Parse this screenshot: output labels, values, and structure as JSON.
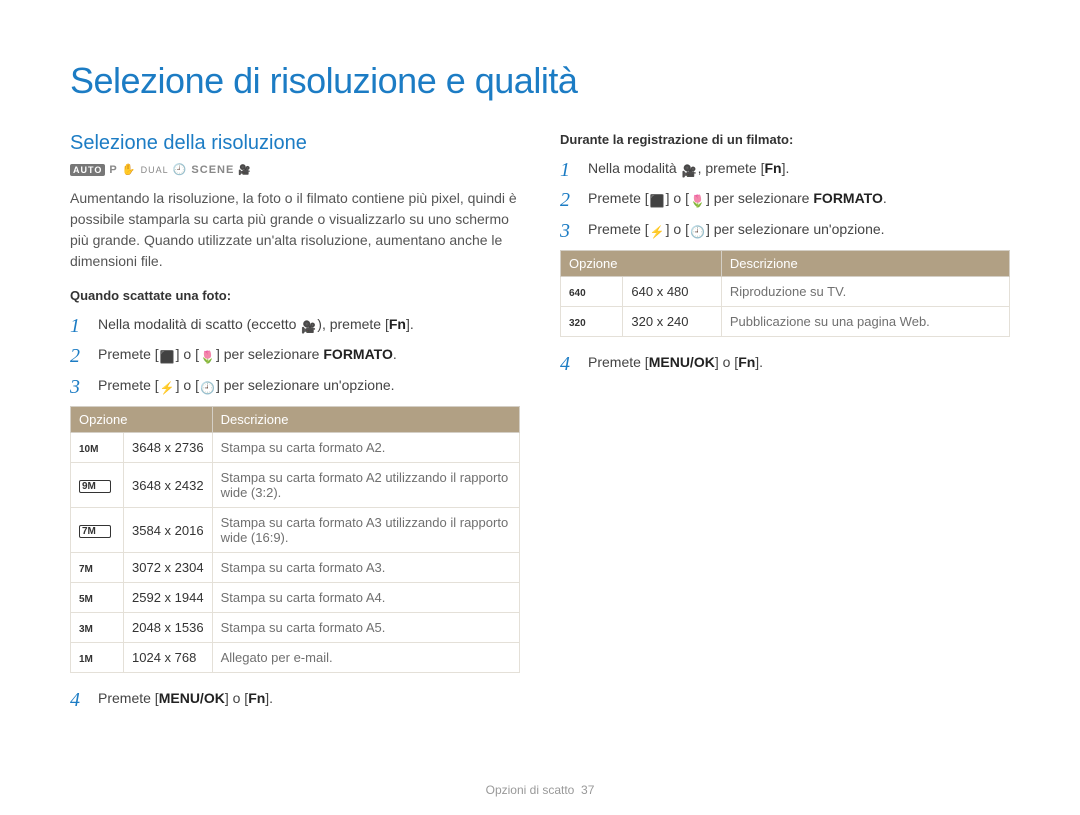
{
  "title": "Selezione di risoluzione e qualità",
  "footer": {
    "chapter": "Opzioni di scatto",
    "page": "37"
  },
  "left": {
    "subtitle": "Selezione della risoluzione",
    "modeicons_html": "<span class='auto'>AUTO</span> <span class='p'>P</span> <span>✋</span> <span style='font-size:9px;'>DUAL</span> <span>🕘</span> <span class='scene'>SCENE</span> <span class='cam'></span>",
    "para": "Aumentando la risoluzione, la foto o il filmato contiene più pixel, quindi è possibile stamparla su carta più grande o visualizzarlo su uno schermo più grande. Quando utilizzate un'alta risoluzione, aumentano anche le dimensioni file.",
    "mini_heading": "Quando scattate una foto:",
    "steps": [
      {
        "html": "Nella modalità di scatto (eccetto <span class='ico'>🎥</span>), premete [<b>Fn</b>]."
      },
      {
        "html": "Premete [<span class='ico'>⬛</span>] o [<span class='ico'>🌷</span>] per selezionare <b>FORMATO</b>."
      },
      {
        "html": "Premete [<span class='ico'>⚡</span>] o [<span class='ico'>🕘</span>] per selezionare un'opzione."
      }
    ],
    "table": {
      "headers": [
        "Opzione",
        "Descrizione"
      ],
      "rows": [
        {
          "badge_text": "10M",
          "badge_box": false,
          "val": "3648 x 2736",
          "desc": "Stampa su carta formato A2."
        },
        {
          "badge_text": "9M",
          "badge_box": true,
          "val": "3648 x 2432",
          "desc": "Stampa su carta formato A2 utilizzando il rapporto wide (3:2)."
        },
        {
          "badge_text": "7M",
          "badge_box": true,
          "val": "3584 x 2016",
          "desc": "Stampa su carta formato A3 utilizzando il rapporto wide (16:9)."
        },
        {
          "badge_text": "7M",
          "badge_box": false,
          "val": "3072 x 2304",
          "desc": "Stampa su carta formato A3."
        },
        {
          "badge_text": "5M",
          "badge_box": false,
          "val": "2592 x 1944",
          "desc": "Stampa su carta formato A4."
        },
        {
          "badge_text": "3M",
          "badge_box": false,
          "val": "2048 x 1536",
          "desc": "Stampa su carta formato A5."
        },
        {
          "badge_text": "1M",
          "badge_box": false,
          "val": "1024 x 768",
          "desc": "Allegato per e-mail."
        }
      ]
    },
    "step4_html": "Premete [<b>MENU/OK</b>] o [<b>Fn</b>]."
  },
  "right": {
    "mini_heading": "Durante la registrazione di un filmato:",
    "steps": [
      {
        "html": "Nella modalità <span class='ico'>🎥</span>, premete [<b>Fn</b>]."
      },
      {
        "html": "Premete [<span class='ico'>⬛</span>] o [<span class='ico'>🌷</span>] per selezionare <b>FORMATO</b>."
      },
      {
        "html": "Premete [<span class='ico'>⚡</span>] o [<span class='ico'>🕘</span>] per selezionare un'opzione."
      }
    ],
    "table": {
      "headers": [
        "Opzione",
        "Descrizione"
      ],
      "rows": [
        {
          "badge_text": "640",
          "val": "640 x 480",
          "desc": "Riproduzione su TV."
        },
        {
          "badge_text": "320",
          "val": "320 x 240",
          "desc": "Pubblicazione su una pagina Web."
        }
      ]
    },
    "step4_html": "Premete [<b>MENU/OK</b>] o [<b>Fn</b>]."
  }
}
